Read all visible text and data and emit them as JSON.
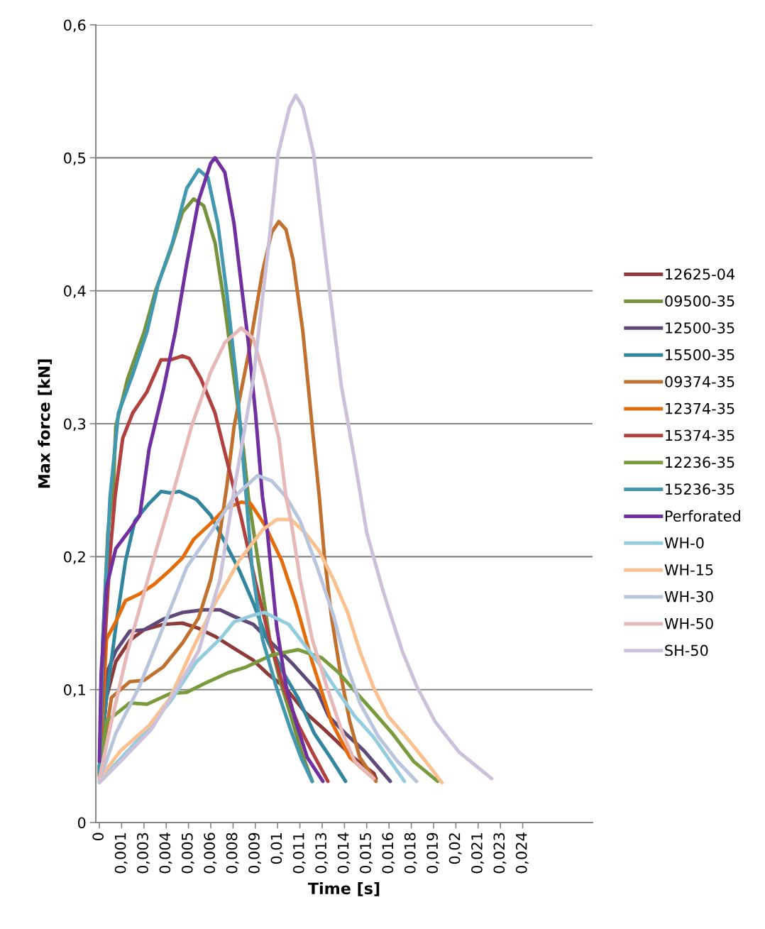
{
  "chart_data": {
    "type": "line",
    "xlabel": "Time [s]",
    "ylabel": "Max force [kN]",
    "xlim": [
      -0.0002,
      0.02767
    ],
    "ylim": [
      0,
      0.6
    ],
    "xticks": [
      {
        "value": 0,
        "label": "0"
      },
      {
        "value": 0.00125,
        "label": "0,001"
      },
      {
        "value": 0.0025,
        "label": "0,003"
      },
      {
        "value": 0.00375,
        "label": "0,004"
      },
      {
        "value": 0.005,
        "label": "0,005"
      },
      {
        "value": 0.00625,
        "label": "0,006"
      },
      {
        "value": 0.0075,
        "label": "0,008"
      },
      {
        "value": 0.00875,
        "label": "0,009"
      },
      {
        "value": 0.01,
        "label": "0,01"
      },
      {
        "value": 0.01125,
        "label": "0,011"
      },
      {
        "value": 0.0125,
        "label": "0,013"
      },
      {
        "value": 0.01375,
        "label": "0,014"
      },
      {
        "value": 0.015,
        "label": "0,015"
      },
      {
        "value": 0.01625,
        "label": "0,016"
      },
      {
        "value": 0.0175,
        "label": "0,018"
      },
      {
        "value": 0.01875,
        "label": "0,019"
      },
      {
        "value": 0.02,
        "label": "0,02"
      },
      {
        "value": 0.02125,
        "label": "0,021"
      },
      {
        "value": 0.0225,
        "label": "0,023"
      },
      {
        "value": 0.02375,
        "label": "0,024"
      }
    ],
    "yticks": [
      0,
      {
        "value": 0.1,
        "label": "0,1"
      },
      {
        "value": 0.2,
        "label": "0,2"
      },
      {
        "value": 0.3,
        "label": "0,3"
      },
      {
        "value": 0.4,
        "label": "0,4"
      },
      {
        "value": 0.5,
        "label": "0,5"
      },
      {
        "value": 0.6,
        "label": "0,6"
      }
    ],
    "grid": "y",
    "legend": "right",
    "marker": "none",
    "line_style": "solid",
    "series": [
      {
        "name": "12625-04",
        "color": "#8e3a38",
        "x": [
          0,
          0.0004,
          0.00092,
          0.00171,
          0.00251,
          0.00358,
          0.00466,
          0.00557,
          0.00649,
          0.00756,
          0.00864,
          0.00943,
          0.01047,
          0.01154,
          0.01262,
          0.01325,
          0.01433,
          0.0154,
          0.01552
        ],
        "values": [
          0.041,
          0.094,
          0.121,
          0.137,
          0.145,
          0.149,
          0.15,
          0.146,
          0.14,
          0.131,
          0.122,
          0.112,
          0.101,
          0.083,
          0.07,
          0.062,
          0.048,
          0.037,
          0.033
        ]
      },
      {
        "name": "09500-35",
        "color": "#76923c",
        "x": [
          0,
          0.0002,
          0.00048,
          0.0008,
          0.00092,
          0.00159,
          0.00251,
          0.00318,
          0.00398,
          0.00466,
          0.00529,
          0.00585,
          0.00649,
          0.00704,
          0.00756,
          0.00808,
          0.00836,
          0.00896,
          0.00955,
          0.01015,
          0.01075,
          0.01134,
          0.01194
        ],
        "values": [
          0.037,
          0.139,
          0.219,
          0.256,
          0.298,
          0.334,
          0.369,
          0.401,
          0.43,
          0.459,
          0.469,
          0.464,
          0.436,
          0.388,
          0.334,
          0.281,
          0.245,
          0.192,
          0.138,
          0.106,
          0.08,
          0.053,
          0.031
        ]
      },
      {
        "name": "12500-35",
        "color": "#5f497a",
        "x": [
          0,
          0.0004,
          0.00092,
          0.00171,
          0.00251,
          0.00358,
          0.00466,
          0.00585,
          0.00677,
          0.00756,
          0.00864,
          0.00967,
          0.01087,
          0.01222,
          0.01286,
          0.01381,
          0.01485,
          0.01632
        ],
        "values": [
          0.041,
          0.112,
          0.129,
          0.144,
          0.145,
          0.153,
          0.158,
          0.16,
          0.16,
          0.155,
          0.149,
          0.135,
          0.119,
          0.099,
          0.08,
          0.067,
          0.054,
          0.031
        ]
      },
      {
        "name": "15500-35",
        "color": "#31859c",
        "x": [
          0,
          0.0004,
          0.00092,
          0.00147,
          0.00199,
          0.00279,
          0.00346,
          0.00398,
          0.0045,
          0.00545,
          0.00625,
          0.00704,
          0.00784,
          0.00864,
          0.00943,
          0.01035,
          0.01114,
          0.01206,
          0.01301,
          0.01381
        ],
        "values": [
          0.041,
          0.094,
          0.147,
          0.197,
          0.227,
          0.24,
          0.249,
          0.248,
          0.249,
          0.243,
          0.231,
          0.211,
          0.19,
          0.165,
          0.137,
          0.112,
          0.094,
          0.067,
          0.048,
          0.031
        ]
      },
      {
        "name": "09374-35",
        "color": "#c0712f",
        "x": [
          0,
          0.00068,
          0.00171,
          0.00251,
          0.00358,
          0.00466,
          0.00557,
          0.00625,
          0.00677,
          0.00716,
          0.00756,
          0.00836,
          0.00915,
          0.00967,
          0.01007,
          0.01047,
          0.01087,
          0.01142,
          0.01194,
          0.01234,
          0.01262,
          0.01301,
          0.01353,
          0.01405,
          0.01461,
          0.01552
        ],
        "values": [
          0.035,
          0.094,
          0.106,
          0.107,
          0.117,
          0.135,
          0.154,
          0.183,
          0.218,
          0.254,
          0.298,
          0.352,
          0.414,
          0.444,
          0.452,
          0.446,
          0.423,
          0.369,
          0.298,
          0.245,
          0.201,
          0.156,
          0.112,
          0.076,
          0.049,
          0.031
        ]
      },
      {
        "name": "12374-35",
        "color": "#e46c0a",
        "x": [
          0,
          0.0004,
          0.00092,
          0.00147,
          0.00227,
          0.00306,
          0.00398,
          0.00466,
          0.00529,
          0.00625,
          0.00704,
          0.00796,
          0.00848,
          0.00927,
          0.01023,
          0.01102,
          0.01194,
          0.01301,
          0.01405,
          0.0154
        ],
        "values": [
          0.035,
          0.138,
          0.151,
          0.167,
          0.172,
          0.179,
          0.19,
          0.199,
          0.213,
          0.225,
          0.236,
          0.241,
          0.24,
          0.224,
          0.197,
          0.165,
          0.121,
          0.076,
          0.049,
          0.033
        ]
      },
      {
        "name": "15374-35",
        "color": "#b0413e",
        "x": [
          0,
          0.0002,
          0.0006,
          0.00088,
          0.00131,
          0.00187,
          0.00267,
          0.00346,
          0.00398,
          0.00466,
          0.00505,
          0.00569,
          0.00649,
          0.00716,
          0.00796,
          0.00876,
          0.00955,
          0.01035,
          0.01114,
          0.01194,
          0.01282
        ],
        "values": [
          0.037,
          0.112,
          0.202,
          0.245,
          0.289,
          0.308,
          0.324,
          0.348,
          0.348,
          0.351,
          0.349,
          0.334,
          0.308,
          0.272,
          0.229,
          0.181,
          0.138,
          0.101,
          0.074,
          0.053,
          0.031
        ]
      },
      {
        "name": "12236-35",
        "color": "#7a9a3e",
        "x": [
          0,
          0.0004,
          0.00171,
          0.00267,
          0.00398,
          0.0049,
          0.00597,
          0.00728,
          0.00824,
          0.00967,
          0.01114,
          0.01246,
          0.01341,
          0.01433,
          0.0154,
          0.01644,
          0.01763,
          0.01898
        ],
        "values": [
          0.035,
          0.076,
          0.09,
          0.089,
          0.097,
          0.098,
          0.105,
          0.113,
          0.117,
          0.126,
          0.13,
          0.124,
          0.113,
          0.099,
          0.083,
          0.067,
          0.046,
          0.031
        ]
      },
      {
        "name": "15236-35",
        "color": "#4198af",
        "x": [
          0,
          0.0002,
          0.0006,
          0.00107,
          0.00187,
          0.00267,
          0.0033,
          0.0041,
          0.0049,
          0.00557,
          0.00609,
          0.00665,
          0.00716,
          0.00768,
          0.00824,
          0.00856,
          0.00915,
          0.00995,
          0.01075,
          0.01134,
          0.01194
        ],
        "values": [
          0.037,
          0.139,
          0.245,
          0.308,
          0.337,
          0.369,
          0.405,
          0.436,
          0.477,
          0.491,
          0.485,
          0.45,
          0.397,
          0.334,
          0.245,
          0.192,
          0.138,
          0.101,
          0.069,
          0.048,
          0.031
        ]
      },
      {
        "name": "Perforated",
        "color": "#7030a0",
        "x": [
          0,
          0.0001,
          0.0004,
          0.00092,
          0.00159,
          0.00227,
          0.00279,
          0.00358,
          0.00426,
          0.0049,
          0.00557,
          0.00625,
          0.00649,
          0.00704,
          0.00756,
          0.00796,
          0.00836,
          0.00876,
          0.00915,
          0.00943,
          0.00995,
          0.01047,
          0.01102,
          0.01166,
          0.01254
        ],
        "values": [
          0.046,
          0.112,
          0.177,
          0.206,
          0.218,
          0.231,
          0.281,
          0.325,
          0.369,
          0.42,
          0.468,
          0.496,
          0.5,
          0.489,
          0.45,
          0.405,
          0.361,
          0.308,
          0.245,
          0.218,
          0.147,
          0.103,
          0.076,
          0.049,
          0.031
        ]
      },
      {
        "name": "WH-0",
        "color": "#93cddd",
        "x": [
          0,
          0.00119,
          0.00251,
          0.00398,
          0.00545,
          0.00677,
          0.00756,
          0.00864,
          0.00927,
          0.01063,
          0.01166,
          0.01246,
          0.01325,
          0.01433,
          0.0154,
          0.01711
        ],
        "values": [
          0.031,
          0.048,
          0.067,
          0.091,
          0.121,
          0.138,
          0.151,
          0.156,
          0.158,
          0.149,
          0.131,
          0.117,
          0.101,
          0.08,
          0.064,
          0.031
        ]
      },
      {
        "name": "WH-15",
        "color": "#fac090",
        "x": [
          0,
          0.00119,
          0.00279,
          0.00398,
          0.00517,
          0.00649,
          0.00784,
          0.00915,
          0.00995,
          0.01075,
          0.01154,
          0.01234,
          0.01313,
          0.01393,
          0.01461,
          0.0154,
          0.0162,
          0.01723,
          0.01831,
          0.01922
        ],
        "values": [
          0.033,
          0.054,
          0.073,
          0.094,
          0.129,
          0.165,
          0.197,
          0.22,
          0.228,
          0.228,
          0.218,
          0.204,
          0.183,
          0.158,
          0.129,
          0.101,
          0.08,
          0.064,
          0.046,
          0.03
        ]
      },
      {
        "name": "WH-30",
        "color": "#b9c5dd",
        "x": [
          0,
          0.00092,
          0.00227,
          0.00358,
          0.0049,
          0.00625,
          0.00756,
          0.00888,
          0.00967,
          0.01047,
          0.01126,
          0.01222,
          0.01313,
          0.01381,
          0.01461,
          0.01564,
          0.01672,
          0.01779
        ],
        "values": [
          0.031,
          0.067,
          0.103,
          0.147,
          0.192,
          0.218,
          0.245,
          0.261,
          0.257,
          0.245,
          0.227,
          0.192,
          0.156,
          0.121,
          0.09,
          0.065,
          0.046,
          0.031
        ]
      },
      {
        "name": "WH-50",
        "color": "#e6b9b8",
        "x": [
          0,
          0.00068,
          0.00159,
          0.00291,
          0.00426,
          0.00517,
          0.00625,
          0.00704,
          0.00796,
          0.00864,
          0.00927,
          0.01007,
          0.01047,
          0.01075,
          0.01126,
          0.01194,
          0.01274,
          0.01365,
          0.01433,
          0.0154
        ],
        "values": [
          0.033,
          0.076,
          0.129,
          0.192,
          0.254,
          0.298,
          0.339,
          0.361,
          0.372,
          0.364,
          0.334,
          0.289,
          0.245,
          0.227,
          0.183,
          0.138,
          0.103,
          0.067,
          0.046,
          0.033
        ]
      },
      {
        "name": "SH-50",
        "color": "#ccc1da",
        "x": [
          0,
          0.00119,
          0.00291,
          0.00426,
          0.00557,
          0.00677,
          0.00756,
          0.00864,
          0.00955,
          0.01003,
          0.01067,
          0.01102,
          0.01142,
          0.01202,
          0.01282,
          0.01357,
          0.01433,
          0.015,
          0.01592,
          0.01699,
          0.01779,
          0.01883,
          0.02018,
          0.02201
        ],
        "values": [
          0.03,
          0.046,
          0.07,
          0.099,
          0.129,
          0.183,
          0.25,
          0.334,
          0.441,
          0.503,
          0.538,
          0.547,
          0.538,
          0.503,
          0.411,
          0.329,
          0.272,
          0.218,
          0.174,
          0.129,
          0.103,
          0.076,
          0.053,
          0.033
        ]
      }
    ]
  }
}
